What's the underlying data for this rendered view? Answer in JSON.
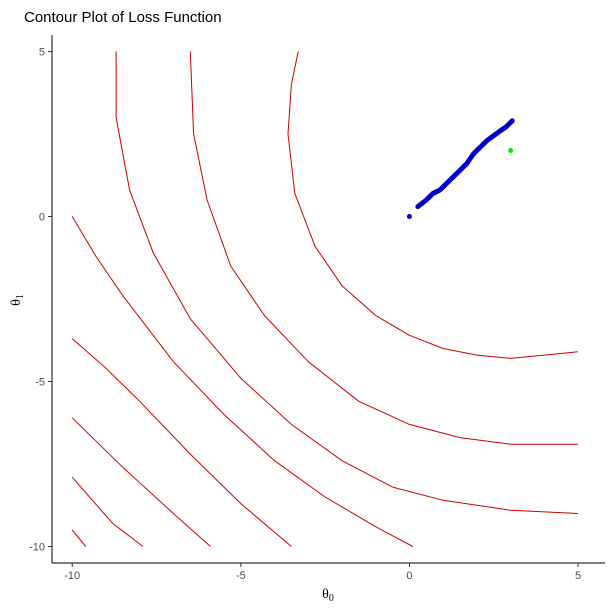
{
  "chart_data": {
    "type": "scatter",
    "title": "Contour Plot of Loss Function",
    "xlabel": {
      "symbol": "θ",
      "subscript": "0"
    },
    "ylabel": {
      "symbol": "θ",
      "subscript": "1"
    },
    "xlim": [
      -10.6,
      5.8
    ],
    "ylim": [
      -10.5,
      5.5
    ],
    "xticks": [
      -10,
      -5,
      0,
      5
    ],
    "yticks": [
      -10,
      -5,
      0,
      5
    ],
    "grid": false,
    "colors": {
      "contour": "#cc0000",
      "path": "#0000cc",
      "target": "#00ee00"
    },
    "contours": [
      [
        [
          -9.6,
          -10.0
        ],
        [
          -10.0,
          -9.5
        ]
      ],
      [
        [
          -7.9,
          -10.0
        ],
        [
          -8.8,
          -9.3
        ],
        [
          -10.0,
          -7.9
        ]
      ],
      [
        [
          -5.9,
          -10.0
        ],
        [
          -7.0,
          -9.0
        ],
        [
          -8.5,
          -7.6
        ],
        [
          -10.0,
          -6.1
        ]
      ],
      [
        [
          -3.5,
          -10.0
        ],
        [
          -5.0,
          -8.7
        ],
        [
          -6.5,
          -7.2
        ],
        [
          -8.0,
          -5.6
        ],
        [
          -9.0,
          -4.6
        ],
        [
          -10.0,
          -3.7
        ]
      ],
      [
        [
          0.1,
          -10.0
        ],
        [
          -1.0,
          -9.4
        ],
        [
          -2.5,
          -8.5
        ],
        [
          -4.0,
          -7.4
        ],
        [
          -5.5,
          -6.0
        ],
        [
          -7.0,
          -4.4
        ],
        [
          -8.5,
          -2.4
        ],
        [
          -9.3,
          -1.2
        ],
        [
          -10.0,
          0.0
        ]
      ],
      [
        [
          5.0,
          -9.0
        ],
        [
          3.0,
          -8.9
        ],
        [
          1.0,
          -8.6
        ],
        [
          -0.5,
          -8.2
        ],
        [
          -2.0,
          -7.4
        ],
        [
          -3.5,
          -6.3
        ],
        [
          -5.0,
          -4.9
        ],
        [
          -6.5,
          -3.1
        ],
        [
          -7.6,
          -1.1
        ],
        [
          -8.3,
          0.8
        ],
        [
          -8.7,
          3.0
        ],
        [
          -8.7,
          5.0
        ]
      ],
      [
        [
          5.0,
          -6.9
        ],
        [
          3.0,
          -6.9
        ],
        [
          1.5,
          -6.7
        ],
        [
          0.0,
          -6.3
        ],
        [
          -1.5,
          -5.6
        ],
        [
          -3.0,
          -4.4
        ],
        [
          -4.3,
          -3.0
        ],
        [
          -5.3,
          -1.5
        ],
        [
          -6.0,
          0.5
        ],
        [
          -6.4,
          2.5
        ],
        [
          -6.5,
          5.0
        ]
      ],
      [
        [
          5.0,
          -4.1
        ],
        [
          4.0,
          -4.2
        ],
        [
          3.0,
          -4.3
        ],
        [
          2.0,
          -4.2
        ],
        [
          1.0,
          -4.0
        ],
        [
          0.0,
          -3.6
        ],
        [
          -1.0,
          -3.0
        ],
        [
          -2.0,
          -2.1
        ],
        [
          -2.8,
          -0.9
        ],
        [
          -3.4,
          0.7
        ],
        [
          -3.6,
          2.5
        ],
        [
          -3.5,
          4.0
        ],
        [
          -3.3,
          5.0
        ]
      ]
    ],
    "path": [
      [
        0.0,
        0.0
      ],
      [
        0.25,
        0.3
      ],
      [
        0.5,
        0.5
      ],
      [
        0.7,
        0.7
      ],
      [
        0.9,
        0.8
      ],
      [
        1.1,
        1.0
      ],
      [
        1.3,
        1.2
      ],
      [
        1.5,
        1.4
      ],
      [
        1.7,
        1.6
      ],
      [
        1.9,
        1.9
      ],
      [
        2.1,
        2.1
      ],
      [
        2.3,
        2.3
      ],
      [
        2.5,
        2.45
      ],
      [
        2.7,
        2.6
      ],
      [
        2.85,
        2.7
      ],
      [
        3.05,
        2.9
      ]
    ],
    "target": [
      3.0,
      2.0
    ]
  }
}
